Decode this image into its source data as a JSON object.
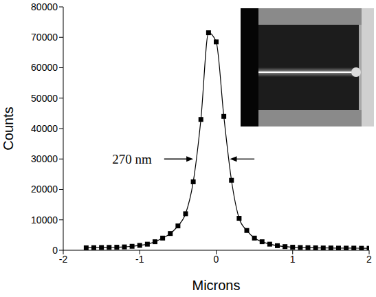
{
  "chart_data": {
    "type": "line",
    "x_label": "Microns",
    "y_label": "Counts",
    "x": [
      -1.7,
      -1.6,
      -1.5,
      -1.4,
      -1.3,
      -1.2,
      -1.1,
      -1.0,
      -0.9,
      -0.8,
      -0.7,
      -0.6,
      -0.5,
      -0.4,
      -0.3,
      -0.2,
      -0.1,
      0.0,
      0.1,
      0.2,
      0.3,
      0.4,
      0.5,
      0.6,
      0.7,
      0.8,
      0.9,
      1.0,
      1.1,
      1.2,
      1.3,
      1.4,
      1.5,
      1.6,
      1.7,
      1.8,
      1.9,
      2.0
    ],
    "values": [
      800,
      850,
      900,
      950,
      1000,
      1100,
      1300,
      1600,
      2000,
      2800,
      4000,
      5500,
      8000,
      12000,
      22500,
      43000,
      71500,
      68500,
      44000,
      23000,
      10500,
      6500,
      4000,
      2800,
      2000,
      1500,
      1200,
      1000,
      900,
      850,
      800,
      750,
      750,
      700,
      700,
      700,
      650,
      650
    ],
    "color": "#000000",
    "marker": "square",
    "line_style": "solid",
    "xlim": [
      -2,
      2
    ],
    "xticks": [
      -2,
      -1,
      0,
      1,
      2
    ],
    "ylim": [
      0,
      80000
    ],
    "yticks": [
      0,
      10000,
      20000,
      30000,
      40000,
      50000,
      60000,
      70000,
      80000
    ],
    "grid": false,
    "annotations": [
      {
        "text": "270 nm",
        "x": -1.1,
        "y": 30000,
        "arrows": [
          {
            "from": [
              -0.68,
              30000
            ],
            "to": [
              -0.3,
              30000
            ]
          },
          {
            "from": [
              0.5,
              30000
            ],
            "to": [
              0.18,
              30000
            ]
          }
        ]
      }
    ]
  }
}
